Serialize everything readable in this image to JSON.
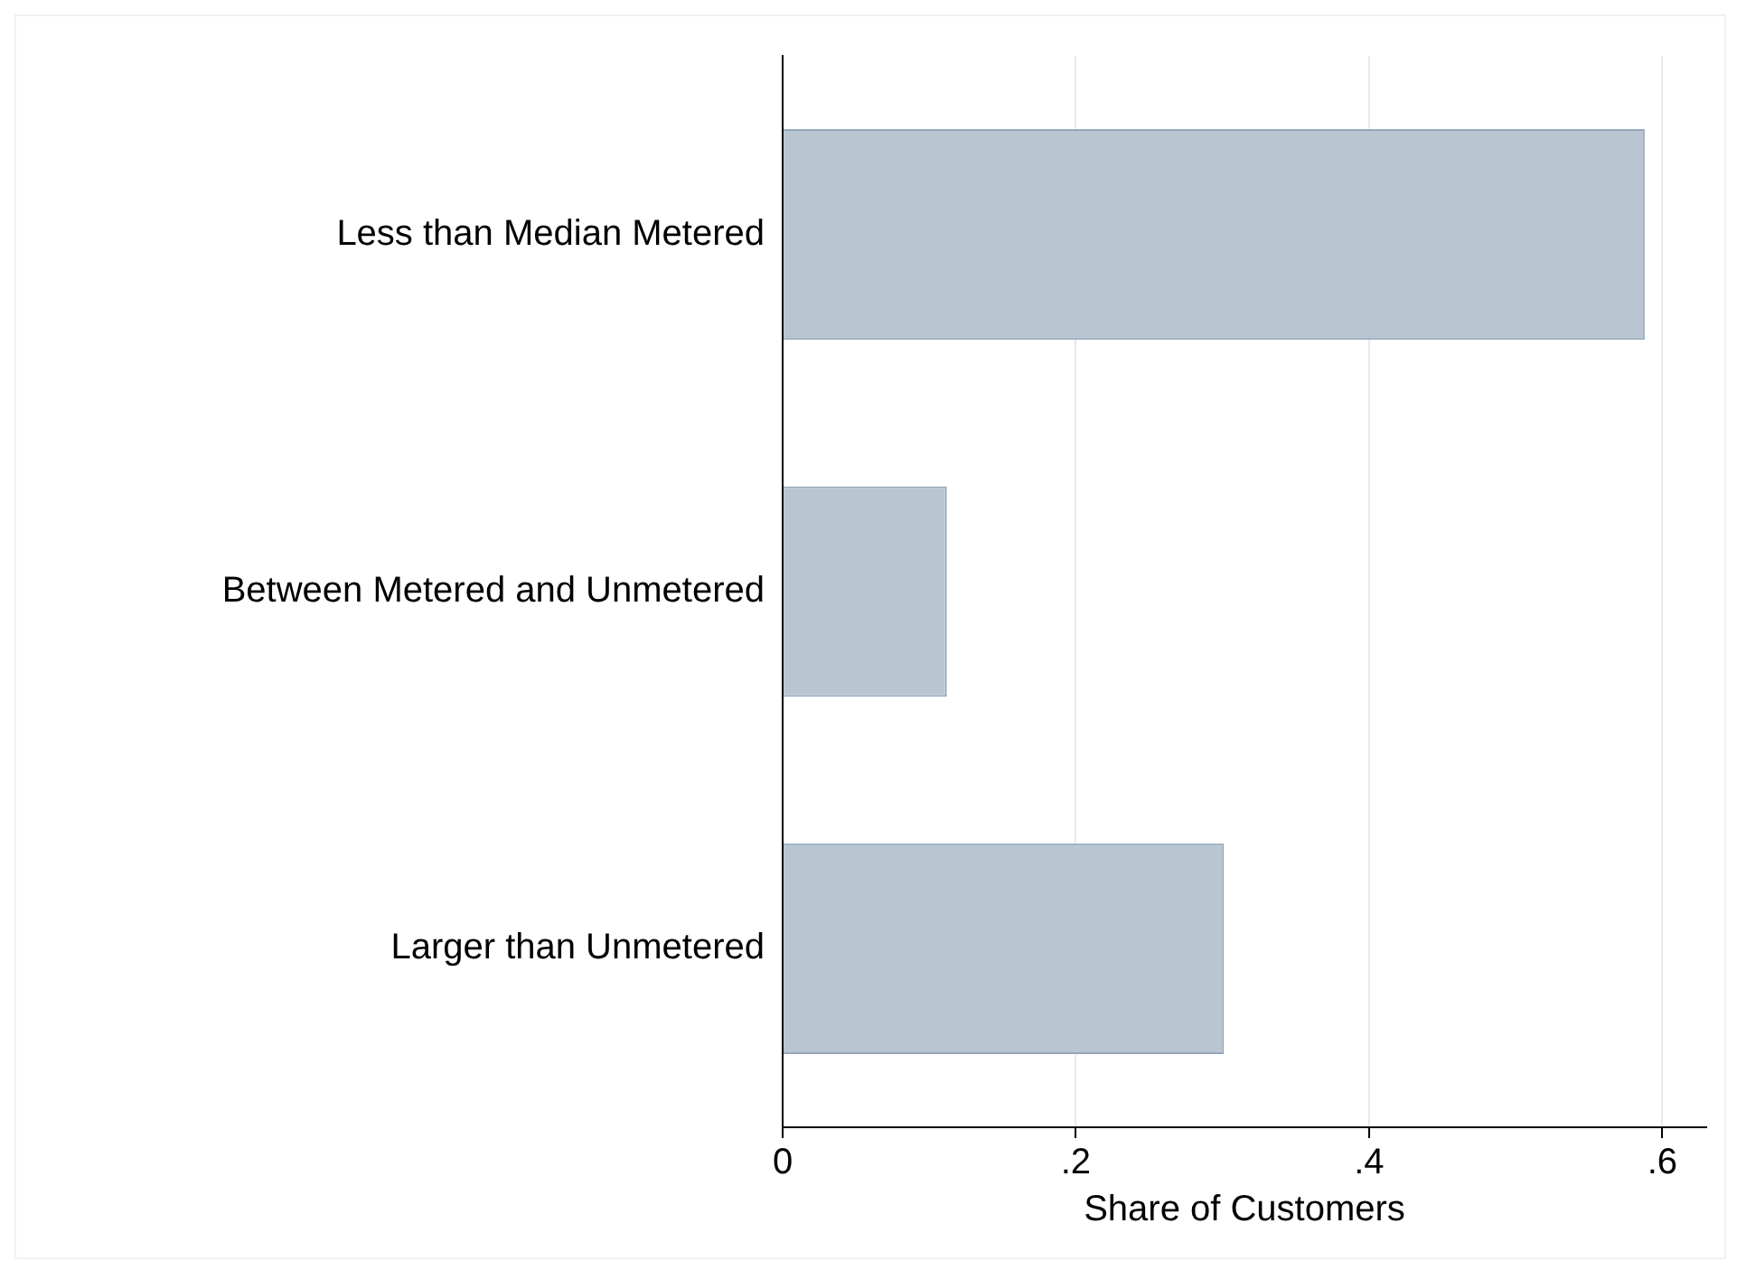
{
  "chart_data": {
    "type": "bar",
    "orientation": "horizontal",
    "xlabel": "Share of Customers",
    "categories": [
      "Less than Median Metered",
      "Between Metered and Unmetered",
      "Larger than Unmetered"
    ],
    "values": [
      0.588,
      0.112,
      0.301
    ],
    "color": "#b9c6d2",
    "xlim": [
      0,
      0.63
    ],
    "xticks": [
      0,
      {
        "value": 0.2,
        "label": ".2"
      },
      {
        "value": 0.4,
        "label": ".4"
      },
      {
        "value": 0.6,
        "label": ".6"
      }
    ],
    "grid": "x",
    "legend": false
  }
}
